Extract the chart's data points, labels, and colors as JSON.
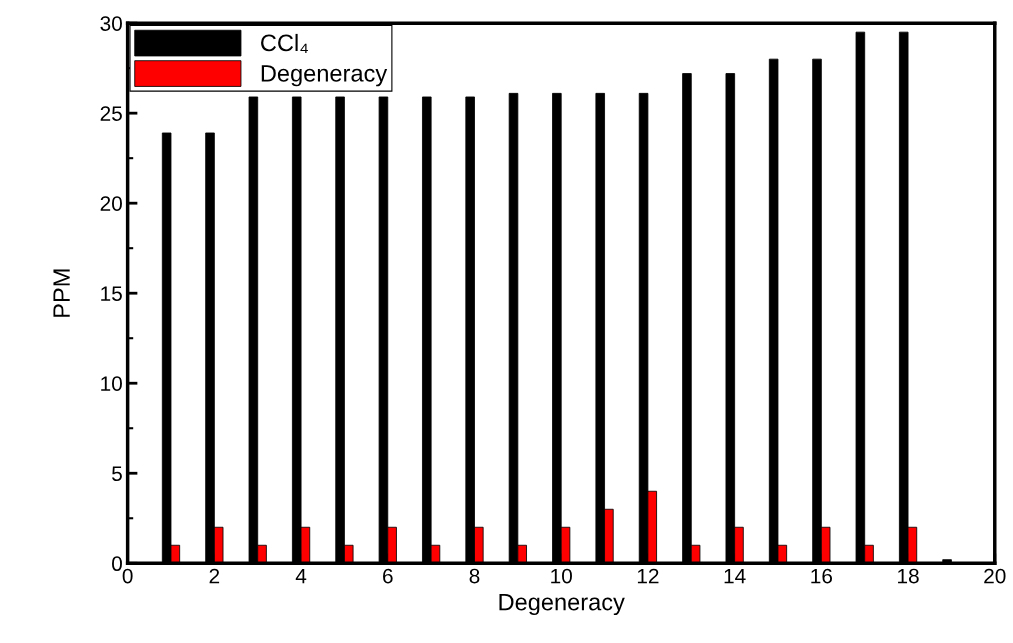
{
  "chart_data": {
    "type": "bar",
    "xlabel": "Degeneracy",
    "ylabel": "PPM",
    "series": [
      {
        "name": "CCl₄",
        "color": "#000000",
        "x": [
          1,
          2,
          3,
          4,
          5,
          6,
          7,
          8,
          9,
          10,
          11,
          12,
          13,
          14,
          15,
          16,
          17,
          18,
          19
        ],
        "values": [
          23.9,
          23.9,
          25.9,
          25.9,
          25.9,
          25.9,
          25.9,
          25.9,
          26.1,
          26.1,
          26.1,
          26.1,
          27.2,
          27.2,
          28.0,
          28.0,
          29.5,
          29.5,
          0.2
        ]
      },
      {
        "name": "Degeneracy",
        "color": "#ff0000",
        "x": [
          1,
          2,
          3,
          4,
          5,
          6,
          7,
          8,
          9,
          10,
          11,
          12,
          13,
          14,
          15,
          16,
          17,
          18
        ],
        "values": [
          1,
          2,
          1,
          2,
          1,
          2,
          1,
          2,
          1,
          2,
          3,
          4,
          1,
          2,
          1,
          2,
          1,
          2
        ]
      }
    ],
    "xlim": [
      0,
      20
    ],
    "xticks": [
      0,
      2,
      4,
      6,
      8,
      10,
      12,
      14,
      16,
      18,
      20
    ],
    "ylim": [
      0,
      30
    ],
    "yticks": [
      0,
      5,
      10,
      15,
      20,
      25,
      30
    ],
    "legend": "top left",
    "grid": false
  }
}
